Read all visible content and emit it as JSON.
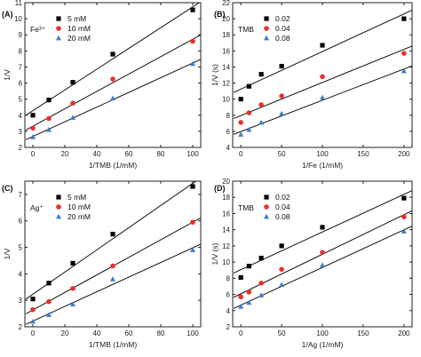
{
  "chart_data": [
    {
      "panel": "(A)",
      "type": "scatter",
      "ylabel": "1/V",
      "xlabel": "1/TMB (1/mM)",
      "xlim": [
        -5,
        105
      ],
      "ylim": [
        2,
        11
      ],
      "xticks": [
        0,
        20,
        40,
        60,
        80,
        100
      ],
      "yticks": [
        2,
        3,
        4,
        5,
        6,
        7,
        8,
        9,
        10,
        11
      ],
      "legend_title": "Fe³⁺",
      "legend_position": "top-left",
      "x": [
        0,
        10,
        25,
        50,
        100
      ],
      "series": [
        {
          "name": "5 mM",
          "marker": "square",
          "color": "#000000",
          "values": [
            4.0,
            4.95,
            6.05,
            7.8,
            10.55
          ]
        },
        {
          "name": "10 mM",
          "marker": "circle",
          "color": "#e8302c",
          "values": [
            3.2,
            3.8,
            4.75,
            6.25,
            8.6
          ]
        },
        {
          "name": "20 mM",
          "marker": "triangle",
          "color": "#3b7ec9",
          "values": [
            2.65,
            3.1,
            3.85,
            5.05,
            7.2
          ]
        }
      ]
    },
    {
      "panel": "(B)",
      "type": "scatter",
      "ylabel": "1/V (s)",
      "xlabel": "1/Fe (1/mM)",
      "xlim": [
        -10,
        210
      ],
      "ylim": [
        4,
        22
      ],
      "xticks": [
        0,
        50,
        100,
        150,
        200
      ],
      "yticks": [
        4,
        6,
        8,
        10,
        12,
        14,
        16,
        18,
        20,
        22
      ],
      "legend_title": "TMB",
      "legend_position": "top-left",
      "x": [
        0,
        10,
        25,
        50,
        100,
        200
      ],
      "series": [
        {
          "name": "0.02",
          "marker": "square",
          "color": "#000000",
          "values": [
            10.0,
            11.6,
            13.1,
            14.1,
            16.7,
            20.0
          ]
        },
        {
          "name": "0.04",
          "marker": "circle",
          "color": "#e8302c",
          "values": [
            7.1,
            8.3,
            9.3,
            10.4,
            12.8,
            15.7
          ]
        },
        {
          "name": "0.08",
          "marker": "triangle",
          "color": "#3b7ec9",
          "values": [
            5.6,
            6.2,
            7.1,
            8.2,
            10.2,
            13.5
          ]
        }
      ]
    },
    {
      "panel": "(C)",
      "type": "scatter",
      "ylabel": "1/V",
      "xlabel": "1/TMB (1/mM)",
      "xlim": [
        -5,
        105
      ],
      "ylim": [
        2,
        7.5
      ],
      "xticks": [
        0,
        20,
        40,
        60,
        80,
        100
      ],
      "yticks": [
        2,
        3,
        4,
        5,
        6,
        7
      ],
      "legend_title": "Ag⁺",
      "legend_position": "top-left",
      "x": [
        0,
        10,
        25,
        50,
        100
      ],
      "series": [
        {
          "name": "5 mM",
          "marker": "square",
          "color": "#000000",
          "values": [
            3.05,
            3.65,
            4.4,
            5.5,
            7.3
          ]
        },
        {
          "name": "10 mM",
          "marker": "circle",
          "color": "#e8302c",
          "values": [
            2.65,
            2.95,
            3.45,
            4.3,
            5.95
          ]
        },
        {
          "name": "20 mM",
          "marker": "triangle",
          "color": "#3b7ec9",
          "values": [
            2.2,
            2.45,
            2.85,
            3.8,
            4.9
          ]
        }
      ]
    },
    {
      "panel": "(D)",
      "type": "scatter",
      "ylabel": "1/V (s)",
      "xlabel": "1/Ag (1/mM)",
      "xlim": [
        -10,
        210
      ],
      "ylim": [
        2,
        20
      ],
      "xticks": [
        0,
        50,
        100,
        150,
        200
      ],
      "yticks": [
        2,
        4,
        6,
        8,
        10,
        12,
        14,
        16,
        18,
        20
      ],
      "legend_title": "TMB",
      "legend_position": "top-left",
      "x": [
        0,
        10,
        25,
        50,
        100,
        200
      ],
      "series": [
        {
          "name": "0.02",
          "marker": "square",
          "color": "#000000",
          "values": [
            8.1,
            9.5,
            10.5,
            12.0,
            14.3,
            17.9
          ]
        },
        {
          "name": "0.04",
          "marker": "circle",
          "color": "#e8302c",
          "values": [
            5.7,
            6.3,
            7.4,
            9.1,
            11.2,
            15.6
          ]
        },
        {
          "name": "0.08",
          "marker": "triangle",
          "color": "#3b7ec9",
          "values": [
            4.5,
            5.0,
            5.9,
            7.2,
            9.6,
            13.8
          ]
        }
      ]
    }
  ]
}
